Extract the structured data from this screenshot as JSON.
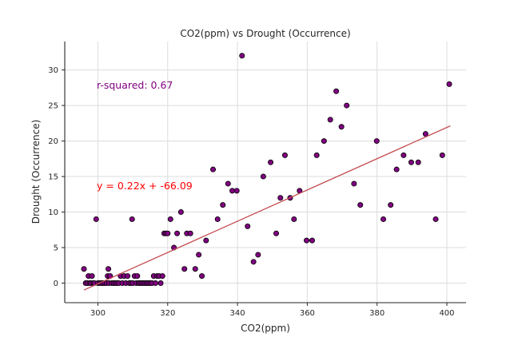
{
  "chart_data": {
    "type": "scatter",
    "title": "CO2(ppm) vs Drought (Occurrence)",
    "xlabel": "CO2(ppm)",
    "ylabel": "Drought (Occurrence)",
    "xlim": [
      290.5,
      405.5
    ],
    "ylim": [
      -2.75,
      34
    ],
    "xticks": [
      300,
      320,
      340,
      360,
      380,
      400
    ],
    "yticks": [
      0,
      5,
      10,
      15,
      20,
      25,
      30
    ],
    "grid": true,
    "point_color": "#800080",
    "point_edge_color": "#000000",
    "line_color": "#c44e52",
    "fit_line": {
      "slope": 0.22,
      "intercept": -66.09,
      "x_range": [
        296,
        401
      ]
    },
    "annotations": {
      "r_squared": {
        "text": "r-squared: 0.67",
        "color": "#800080"
      },
      "equation": {
        "text": "y = 0.22x + -66.09",
        "color": "#ff0000"
      }
    },
    "points": [
      [
        296,
        2
      ],
      [
        296.5,
        0
      ],
      [
        297,
        0
      ],
      [
        297.3,
        1
      ],
      [
        297.7,
        0
      ],
      [
        298,
        0
      ],
      [
        298.3,
        1
      ],
      [
        298.7,
        0
      ],
      [
        299,
        0
      ],
      [
        299.5,
        9
      ],
      [
        300,
        0
      ],
      [
        300.5,
        0
      ],
      [
        301,
        0
      ],
      [
        301.5,
        0
      ],
      [
        302,
        0
      ],
      [
        302.5,
        0
      ],
      [
        302.8,
        1
      ],
      [
        303,
        2
      ],
      [
        303.2,
        0
      ],
      [
        303.5,
        1
      ],
      [
        304,
        0
      ],
      [
        304.5,
        0
      ],
      [
        305,
        0
      ],
      [
        305.5,
        0
      ],
      [
        306,
        0
      ],
      [
        306.5,
        1
      ],
      [
        307,
        0
      ],
      [
        307.5,
        1
      ],
      [
        308,
        0
      ],
      [
        308.5,
        1
      ],
      [
        309,
        0
      ],
      [
        309.5,
        0
      ],
      [
        309.8,
        9
      ],
      [
        310,
        0
      ],
      [
        310.5,
        1
      ],
      [
        311,
        0
      ],
      [
        311.3,
        1
      ],
      [
        311.7,
        0
      ],
      [
        312,
        0
      ],
      [
        312.5,
        0
      ],
      [
        313,
        0
      ],
      [
        313.5,
        0
      ],
      [
        314,
        0
      ],
      [
        314.5,
        0
      ],
      [
        315,
        0
      ],
      [
        315.5,
        0
      ],
      [
        316,
        1
      ],
      [
        316.5,
        0
      ],
      [
        317,
        1
      ],
      [
        317.5,
        1
      ],
      [
        318,
        0
      ],
      [
        318.5,
        1
      ],
      [
        319,
        7
      ],
      [
        319.5,
        7
      ],
      [
        320,
        7
      ],
      [
        320.8,
        9
      ],
      [
        321.8,
        5
      ],
      [
        322.7,
        7
      ],
      [
        323.8,
        10
      ],
      [
        324.8,
        2
      ],
      [
        325.5,
        7
      ],
      [
        326.5,
        7
      ],
      [
        327.9,
        2
      ],
      [
        328.9,
        4
      ],
      [
        329.8,
        1
      ],
      [
        331,
        6
      ],
      [
        333,
        16
      ],
      [
        334.3,
        9
      ],
      [
        335.8,
        11
      ],
      [
        337.3,
        14
      ],
      [
        338.5,
        13
      ],
      [
        339.8,
        13
      ],
      [
        341.3,
        32
      ],
      [
        342.9,
        8
      ],
      [
        344.6,
        3
      ],
      [
        345.9,
        4
      ],
      [
        347.4,
        15
      ],
      [
        349.5,
        17
      ],
      [
        351.1,
        7
      ],
      [
        352.3,
        12
      ],
      [
        353.6,
        18
      ],
      [
        355.1,
        12
      ],
      [
        356.2,
        9
      ],
      [
        357.8,
        13
      ],
      [
        359.8,
        6
      ],
      [
        361.4,
        6
      ],
      [
        362.7,
        18
      ],
      [
        364.8,
        20
      ],
      [
        366.6,
        23
      ],
      [
        368.3,
        27
      ],
      [
        369.8,
        22
      ],
      [
        371.3,
        25
      ],
      [
        373.4,
        14
      ],
      [
        375.2,
        11
      ],
      [
        379.9,
        20
      ],
      [
        381.8,
        9
      ],
      [
        383.9,
        11
      ],
      [
        385.6,
        16
      ],
      [
        387.6,
        18
      ],
      [
        389.8,
        17
      ],
      [
        391.8,
        17
      ],
      [
        393.9,
        21
      ],
      [
        396.8,
        9
      ],
      [
        398.7,
        18
      ],
      [
        400.7,
        28
      ]
    ]
  }
}
